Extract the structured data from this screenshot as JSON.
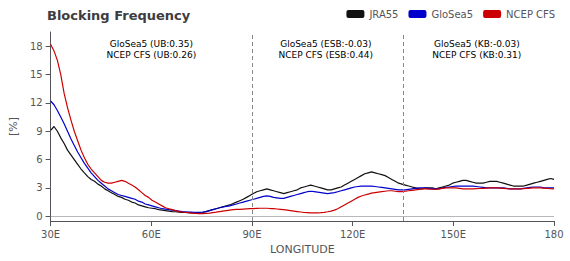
{
  "chart_data": {
    "type": "line",
    "title": "Blocking Frequency",
    "xlabel": "LONGITUDE",
    "ylabel": "[%]",
    "x": [
      30,
      31.0067,
      32.0134,
      33.0201,
      34.0268,
      35.0336,
      36.0403,
      37.047,
      38.0537,
      39.0604,
      40.0671,
      41.0738,
      42.0805,
      43.0872,
      44.094,
      45.1007,
      46.1074,
      47.1141,
      48.1208,
      49.1275,
      50.1342,
      51.1409,
      52.1477,
      53.1544,
      54.1611,
      55.1678,
      56.1745,
      57.1812,
      58.1879,
      59.1946,
      60.2013,
      61.2081,
      62.2148,
      63.2215,
      64.2282,
      65.2349,
      66.2416,
      67.2483,
      68.255,
      69.2617,
      70.2685,
      71.2752,
      72.2819,
      73.2886,
      74.2953,
      75.302,
      76.3087,
      77.3154,
      78.3221,
      79.3289,
      80.3356,
      81.3423,
      82.349,
      83.3557,
      84.3624,
      85.3691,
      86.3758,
      87.3826,
      88.3893,
      89.396,
      90.4027,
      91.4094,
      92.4161,
      93.4228,
      94.4295,
      95.4362,
      96.443,
      97.4497,
      98.4564,
      99.4631,
      100.4698,
      101.4765,
      102.4832,
      103.4899,
      104.4966,
      105.5034,
      106.5101,
      107.5168,
      108.5235,
      109.5302,
      110.5369,
      111.5436,
      112.5503,
      113.557,
      114.5638,
      115.5705,
      116.5772,
      117.5839,
      118.5906,
      119.5973,
      120.604,
      121.6107,
      122.6174,
      123.6242,
      124.6309,
      125.6376,
      126.6443,
      127.651,
      128.6577,
      129.6644,
      130.6711,
      131.6779,
      132.6846,
      133.6913,
      134.698,
      135.7047,
      136.7114,
      137.7181,
      138.7248,
      139.7315,
      140.7383,
      141.745,
      142.7517,
      143.7584,
      144.7651,
      145.7718,
      146.7785,
      147.7852,
      148.7919,
      149.7987,
      150.8054,
      151.8121,
      152.8188,
      153.8255,
      154.8322,
      155.8389,
      156.8456,
      157.8523,
      158.8591,
      159.8658,
      160.8725,
      161.8792,
      162.8859,
      163.8926,
      164.8993,
      165.906,
      166.9128,
      167.9195,
      168.9262,
      169.9329,
      170.9396,
      171.9463,
      172.953,
      173.9597,
      174.9664,
      175.9732,
      176.9799,
      177.9866,
      178.9933,
      180
    ],
    "series": [
      {
        "name": "JRA55",
        "color": "#111111",
        "values": [
          9.1,
          9.5,
          9.0,
          8.3,
          7.7,
          7.0,
          6.5,
          6.0,
          5.5,
          5.0,
          4.6,
          4.2,
          3.9,
          3.7,
          3.4,
          3.2,
          2.9,
          2.7,
          2.5,
          2.3,
          2.1,
          2.0,
          1.8,
          1.7,
          1.5,
          1.4,
          1.2,
          1.1,
          1.0,
          0.9,
          0.85,
          0.8,
          0.7,
          0.65,
          0.6,
          0.55,
          0.5,
          0.48,
          0.44,
          0.42,
          0.4,
          0.38,
          0.36,
          0.35,
          0.36,
          0.4,
          0.5,
          0.6,
          0.7,
          0.8,
          0.9,
          1.0,
          1.1,
          1.2,
          1.35,
          1.5,
          1.65,
          1.8,
          2.0,
          2.2,
          2.4,
          2.6,
          2.7,
          2.8,
          2.9,
          2.8,
          2.7,
          2.6,
          2.5,
          2.4,
          2.5,
          2.6,
          2.7,
          2.8,
          3.0,
          3.1,
          3.2,
          3.3,
          3.2,
          3.1,
          3.0,
          2.9,
          2.8,
          2.8,
          2.9,
          3.0,
          3.1,
          3.3,
          3.5,
          3.7,
          3.9,
          4.1,
          4.3,
          4.5,
          4.6,
          4.7,
          4.6,
          4.5,
          4.4,
          4.3,
          4.1,
          3.9,
          3.7,
          3.5,
          3.4,
          3.3,
          3.2,
          3.1,
          3.0,
          2.9,
          2.9,
          3.0,
          3.0,
          3.0,
          2.9,
          3.0,
          3.1,
          3.2,
          3.3,
          3.5,
          3.6,
          3.7,
          3.8,
          3.8,
          3.7,
          3.6,
          3.5,
          3.5,
          3.5,
          3.6,
          3.7,
          3.7,
          3.7,
          3.6,
          3.5,
          3.4,
          3.3,
          3.2,
          3.2,
          3.2,
          3.2,
          3.3,
          3.4,
          3.5,
          3.6,
          3.7,
          3.8,
          3.9,
          4.0,
          3.9
        ]
      },
      {
        "name": "GloSea5",
        "color": "#0000cc",
        "values": [
          12.2,
          11.8,
          11.2,
          10.5,
          9.8,
          9.0,
          8.2,
          7.5,
          6.8,
          6.2,
          5.6,
          5.1,
          4.6,
          4.2,
          3.8,
          3.5,
          3.2,
          2.9,
          2.7,
          2.5,
          2.3,
          2.2,
          2.1,
          2.0,
          1.9,
          1.8,
          1.6,
          1.5,
          1.3,
          1.2,
          1.1,
          1.0,
          0.9,
          0.8,
          0.75,
          0.7,
          0.65,
          0.6,
          0.55,
          0.5,
          0.48,
          0.45,
          0.43,
          0.42,
          0.42,
          0.45,
          0.5,
          0.6,
          0.7,
          0.8,
          0.9,
          1.0,
          1.05,
          1.1,
          1.2,
          1.3,
          1.4,
          1.5,
          1.6,
          1.7,
          1.8,
          1.9,
          2.0,
          2.1,
          2.15,
          2.1,
          2.0,
          1.95,
          1.9,
          1.9,
          2.0,
          2.1,
          2.2,
          2.3,
          2.4,
          2.5,
          2.6,
          2.65,
          2.6,
          2.55,
          2.5,
          2.45,
          2.4,
          2.45,
          2.5,
          2.6,
          2.7,
          2.8,
          2.9,
          3.0,
          3.1,
          3.15,
          3.2,
          3.2,
          3.2,
          3.2,
          3.15,
          3.1,
          3.05,
          3.0,
          2.95,
          2.9,
          2.85,
          2.8,
          2.8,
          2.8,
          2.85,
          2.9,
          2.95,
          3.0,
          3.0,
          3.0,
          2.95,
          2.9,
          2.9,
          2.9,
          3.0,
          3.05,
          3.1,
          3.15,
          3.2,
          3.2,
          3.2,
          3.2,
          3.2,
          3.2,
          3.15,
          3.1,
          3.05,
          3.0,
          3.0,
          3.0,
          3.0,
          3.0,
          3.0,
          2.95,
          2.9,
          2.9,
          2.9,
          2.9,
          2.95,
          3.0,
          3.05,
          3.1,
          3.1,
          3.1,
          3.0,
          3.0,
          3.0,
          3.0
        ]
      },
      {
        "name": "NCEP CFS",
        "color": "#cc0000",
        "values": [
          18.2,
          17.5,
          16.5,
          15.0,
          13.0,
          11.5,
          10.2,
          9.0,
          8.0,
          7.0,
          6.2,
          5.5,
          5.0,
          4.6,
          4.2,
          3.8,
          3.6,
          3.5,
          3.5,
          3.6,
          3.7,
          3.8,
          3.7,
          3.5,
          3.3,
          3.1,
          2.8,
          2.5,
          2.2,
          2.0,
          1.7,
          1.5,
          1.3,
          1.1,
          0.9,
          0.8,
          0.7,
          0.6,
          0.5,
          0.45,
          0.4,
          0.35,
          0.32,
          0.3,
          0.28,
          0.28,
          0.3,
          0.33,
          0.38,
          0.43,
          0.5,
          0.55,
          0.6,
          0.65,
          0.7,
          0.72,
          0.74,
          0.76,
          0.78,
          0.8,
          0.82,
          0.84,
          0.85,
          0.85,
          0.85,
          0.82,
          0.8,
          0.77,
          0.74,
          0.7,
          0.65,
          0.6,
          0.55,
          0.5,
          0.45,
          0.4,
          0.38,
          0.36,
          0.35,
          0.36,
          0.38,
          0.42,
          0.48,
          0.55,
          0.65,
          0.8,
          1.0,
          1.2,
          1.4,
          1.6,
          1.8,
          2.0,
          2.15,
          2.25,
          2.35,
          2.45,
          2.5,
          2.55,
          2.6,
          2.65,
          2.7,
          2.7,
          2.65,
          2.6,
          2.6,
          2.65,
          2.7,
          2.75,
          2.8,
          2.85,
          2.9,
          2.9,
          2.88,
          2.86,
          2.85,
          2.9,
          2.95,
          3.0,
          3.0,
          3.0,
          3.0,
          2.95,
          2.9,
          2.9,
          2.9,
          2.9,
          2.92,
          2.94,
          2.96,
          2.98,
          3.0,
          3.0,
          3.0,
          2.98,
          2.95,
          2.92,
          2.9,
          2.9,
          2.9,
          2.9,
          2.92,
          2.95,
          2.98,
          3.0,
          3.0,
          3.0,
          2.98,
          2.95,
          2.92,
          2.9
        ]
      }
    ],
    "xlim": [
      30,
      180
    ],
    "ylim": [
      -0.5,
      19.5
    ],
    "xticks": [
      {
        "value": 30,
        "label": "30E"
      },
      {
        "value": 60,
        "label": "60E"
      },
      {
        "value": 90,
        "label": "90E"
      },
      {
        "value": 120,
        "label": "120E"
      },
      {
        "value": 150,
        "label": "150E"
      },
      180
    ],
    "yticks": [
      0,
      3,
      6,
      9,
      12,
      15,
      18
    ],
    "vlines": [
      90,
      135
    ],
    "hlines": [
      0
    ],
    "annotations": [
      {
        "x": 60,
        "y": 18.8,
        "text": "GloSea5 (UB:0.35)\nNCEP CFS (UB:0.26)"
      },
      {
        "x": 112,
        "y": 18.8,
        "text": "GloSea5 (ESB:-0.03)\nNCEP CFS (ESB:0.44)"
      },
      {
        "x": 157,
        "y": 18.8,
        "text": "GloSea5 (KB:-0.03)\nNCEP CFS (KB:0.31)"
      }
    ],
    "legend": "upper right",
    "grid": false
  }
}
